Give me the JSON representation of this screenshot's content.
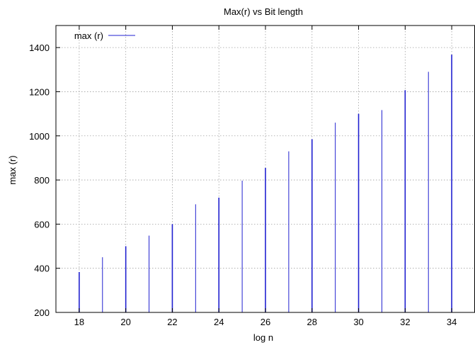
{
  "chart_data": {
    "type": "bar",
    "title": "Max(r) vs Bit length",
    "xlabel": "log n",
    "ylabel": "max (r)",
    "xlim": [
      17,
      35
    ],
    "ylim": [
      200,
      1500
    ],
    "xticks": [
      18,
      20,
      22,
      24,
      26,
      28,
      30,
      32,
      34
    ],
    "yticks": [
      200,
      400,
      600,
      800,
      1000,
      1200,
      1400
    ],
    "grid": true,
    "legend_position": "top-left",
    "series": [
      {
        "name": "max (r)",
        "color": "#2020d0",
        "x": [
          18,
          19,
          20,
          21,
          22,
          23,
          24,
          25,
          26,
          27,
          28,
          29,
          30,
          31,
          32,
          33,
          34
        ],
        "values": [
          383,
          450,
          500,
          548,
          600,
          690,
          720,
          797,
          855,
          930,
          985,
          1060,
          1100,
          1117,
          1207,
          1290,
          1368
        ]
      }
    ]
  }
}
